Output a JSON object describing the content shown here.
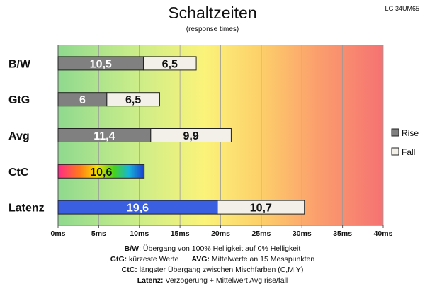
{
  "chart_data": {
    "type": "bar",
    "orientation": "horizontal",
    "stacked": true,
    "title": "Schaltzeiten",
    "subtitle": "(response times)",
    "model_label": "LG 34UM65",
    "categories": [
      "B/W",
      "GtG",
      "Avg",
      "CtC",
      "Latenz"
    ],
    "series": [
      {
        "name": "Rise",
        "values": [
          10.5,
          6,
          11.4,
          10.6,
          19.6
        ],
        "color": "#808080",
        "value_labels": [
          "10,5",
          "6",
          "11,4",
          "10,6",
          "19,6"
        ]
      },
      {
        "name": "Fall",
        "values": [
          6.5,
          6.5,
          9.9,
          null,
          10.7
        ],
        "color": "#f2f0e8",
        "value_labels": [
          "6,5",
          "6,5",
          "9,9",
          "",
          "10,7"
        ]
      }
    ],
    "special_colors": {
      "CtC": "rainbow-gradient",
      "Latenz": "#3a5fe0"
    },
    "xlim": [
      0,
      40
    ],
    "x_ticks": [
      0,
      5,
      10,
      15,
      20,
      25,
      30,
      35,
      40
    ],
    "x_tick_labels": [
      "0ms",
      "5ms",
      "10ms",
      "15ms",
      "20ms",
      "25ms",
      "30ms",
      "35ms",
      "40ms"
    ],
    "grid": true,
    "background": "gradient green-yellow-red",
    "legend_position": "right"
  },
  "notes": {
    "line1_bold": "B/W",
    "line1_text": ":  Übergang von 100% Helligkeit auf 0% Helligkeit",
    "line2a_bold": "GtG:",
    "line2a_text": " kürzeste  Werte",
    "line2b_bold": "AVG:",
    "line2b_text": " Mittelwerte  an 15 Messpunkten",
    "line3_bold": "CtC:",
    "line3_text": " längster Übergang  zwischen Mischfarben (C,M,Y)",
    "line4_bold": "Latenz:",
    "line4_text": " Verzögerung  + Mittelwert  Avg rise/fall"
  }
}
